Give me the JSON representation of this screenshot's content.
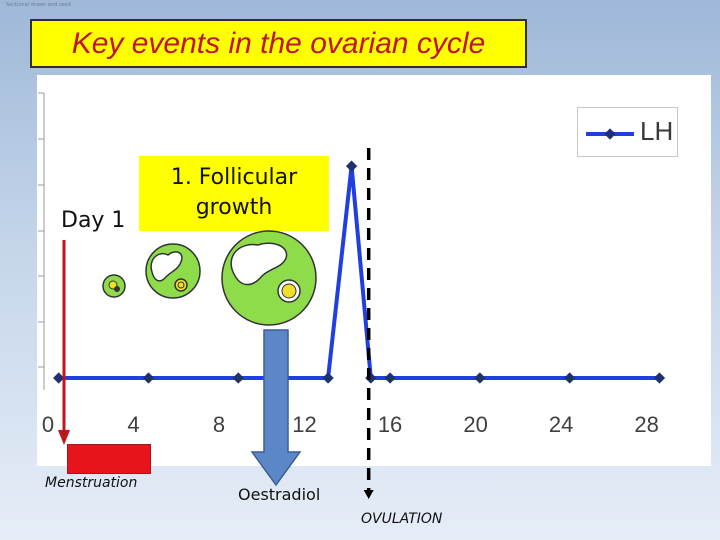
{
  "header": {
    "tiny_text": "Sectional drawn and used",
    "title": "Key events in the ovarian cycle"
  },
  "labels": {
    "day1": "Day 1",
    "callout_line1": "1. Follicular",
    "callout_line2": "growth",
    "menstruation": "Menstruation",
    "oestradiol": "Oestradiol",
    "ovulation": "OVULATION"
  },
  "colors": {
    "title_background": "#ffff00",
    "title_text": "#c0142b",
    "series_line": "#1f3fe0",
    "marker": "#1f3270",
    "follicle_fill": "#8edc4a",
    "oocyte": "#f0e02a",
    "menstruation_arrow": "#c2141b",
    "oestradiol_arrow": "#5b87c8",
    "menstruation_bar": "#e8141d"
  },
  "icons": [
    "follicle-small-icon",
    "follicle-medium-icon",
    "follicle-large-icon",
    "menstruation-arrow-icon",
    "oestradiol-arrow-icon",
    "ovulation-line-icon"
  ],
  "chart_data": {
    "type": "line",
    "series": [
      {
        "name": "LH",
        "x": [
          0.5,
          4.7,
          8.9,
          13.1,
          14.2,
          15.1,
          16.0,
          20.2,
          24.4,
          28.6
        ],
        "y": [
          0,
          0,
          0,
          0,
          100,
          0,
          0,
          0,
          0,
          0
        ]
      }
    ],
    "xticks": [
      0,
      4,
      8,
      12,
      16,
      20,
      24,
      28
    ],
    "xlim": [
      0,
      29
    ],
    "ylim": [
      0,
      110
    ],
    "ovulation_day": 15,
    "legend": "top-right"
  }
}
